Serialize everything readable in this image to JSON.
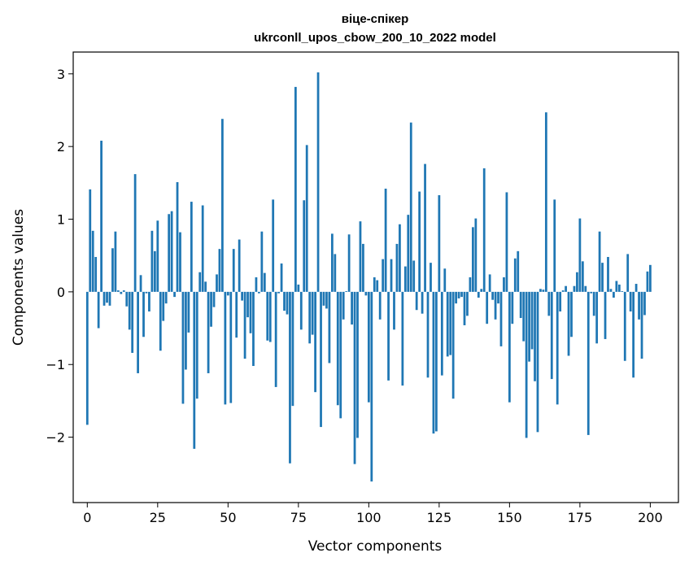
{
  "chart_data": {
    "type": "bar",
    "title": "віце-спікер",
    "subtitle": "ukrconll_upos_cbow_200_10_2022 model",
    "xlabel": "Vector components",
    "ylabel": "Components values",
    "xlim": [
      -5,
      210
    ],
    "ylim": [
      -2.9,
      3.3
    ],
    "xticks": [
      0,
      25,
      50,
      75,
      100,
      125,
      150,
      175,
      200
    ],
    "yticks": [
      -2,
      -1,
      0,
      1,
      2,
      3
    ],
    "bar_color": "#1f77b4",
    "grid": false,
    "values": [
      -1.83,
      1.41,
      0.84,
      0.48,
      -0.5,
      2.08,
      -0.19,
      -0.15,
      -0.19,
      0.6,
      0.83,
      0.02,
      -0.03,
      0.02,
      -0.2,
      -0.52,
      -0.84,
      1.62,
      -1.12,
      0.23,
      -0.62,
      -0.02,
      -0.27,
      0.84,
      0.56,
      0.98,
      -0.81,
      -0.4,
      -0.16,
      1.07,
      1.11,
      -0.07,
      1.51,
      0.82,
      -1.54,
      -1.07,
      -0.56,
      1.24,
      -2.16,
      -1.47,
      0.27,
      1.19,
      0.14,
      -1.12,
      -0.48,
      -0.21,
      0.24,
      0.59,
      2.38,
      -1.55,
      -0.05,
      -1.53,
      0.59,
      -0.63,
      0.72,
      -0.12,
      -0.92,
      -0.35,
      -0.57,
      -1.02,
      0.2,
      -0.02,
      0.83,
      0.26,
      -0.67,
      -0.69,
      1.27,
      -1.31,
      -0.02,
      0.39,
      -0.26,
      -0.31,
      -2.36,
      -1.57,
      2.82,
      0.1,
      -0.52,
      1.26,
      2.02,
      -0.71,
      -0.59,
      -1.38,
      3.02,
      -1.86,
      -0.19,
      -0.23,
      -0.98,
      0.8,
      0.52,
      -1.56,
      -1.74,
      -0.38,
      0.01,
      0.79,
      -0.45,
      -2.37,
      -2.01,
      0.97,
      0.66,
      -0.05,
      -1.52,
      -2.61,
      0.2,
      0.16,
      -0.38,
      0.45,
      1.42,
      -1.22,
      0.45,
      -0.52,
      0.66,
      0.93,
      -1.29,
      0.35,
      1.06,
      2.33,
      0.43,
      -0.25,
      1.38,
      -0.3,
      1.76,
      -1.18,
      0.4,
      -1.95,
      -1.92,
      1.33,
      -1.15,
      0.32,
      -0.89,
      -0.87,
      -1.47,
      -0.16,
      -0.09,
      -0.07,
      -0.46,
      -0.33,
      0.2,
      0.89,
      1.01,
      -0.08,
      0.04,
      1.7,
      -0.44,
      0.24,
      -0.11,
      -0.38,
      -0.16,
      -0.75,
      0.2,
      1.37,
      -1.52,
      -0.44,
      0.46,
      0.56,
      -0.36,
      -0.68,
      -2.01,
      -0.96,
      -0.79,
      -1.23,
      -1.93,
      0.04,
      0.03,
      2.47,
      -0.33,
      -1.2,
      1.27,
      -1.55,
      -0.27,
      0.02,
      0.08,
      -0.88,
      -0.62,
      0.08,
      0.27,
      1.01,
      0.42,
      0.08,
      -1.97,
      -0.02,
      -0.33,
      -0.71,
      0.83,
      0.4,
      -0.65,
      0.48,
      0.04,
      -0.08,
      0.15,
      0.1,
      0.01,
      -0.95,
      0.52,
      -0.27,
      -1.18,
      0.11,
      -0.38,
      -0.92,
      -0.32,
      0.28,
      0.37
    ]
  }
}
